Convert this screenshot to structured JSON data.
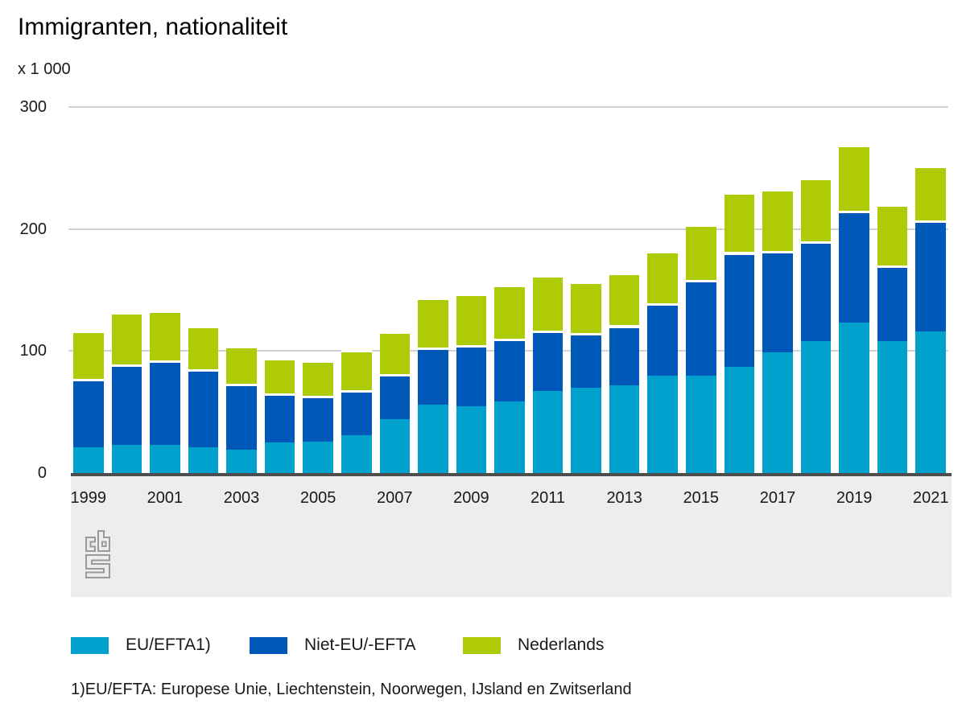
{
  "title": "Immigranten, nationaliteit",
  "unit_label": "x 1 000",
  "footnote": "1)EU/EFTA: Europese Unie, Liechtenstein, Noorwegen, IJsland en Zwitserland",
  "logo_name": "cbs-logo",
  "colors": {
    "eu_efta": "#00a1cd",
    "niet_eu_efta": "#0058b8",
    "nederlands": "#afcb05",
    "axis_line": "#4d4d4d",
    "gridline": "#d2d2d2",
    "panel_background": "#ededed",
    "logo_grey": "#9a9a9a"
  },
  "chart_data": {
    "type": "bar",
    "stacked": true,
    "title": "Immigranten, nationaliteit",
    "unit": "x 1 000",
    "xlabel": "",
    "ylabel": "x 1 000",
    "ylim": [
      0,
      300
    ],
    "yticks": [
      0,
      100,
      200,
      300
    ],
    "grid": true,
    "legend_position": "bottom",
    "categories": [
      1999,
      2000,
      2001,
      2002,
      2003,
      2004,
      2005,
      2006,
      2007,
      2008,
      2009,
      2010,
      2011,
      2012,
      2013,
      2014,
      2015,
      2016,
      2017,
      2018,
      2019,
      2020,
      2021
    ],
    "x_tick_labels": [
      "1999",
      "2001",
      "2003",
      "2005",
      "2007",
      "2009",
      "2011",
      "2013",
      "2015",
      "2017",
      "2019",
      "2021"
    ],
    "series": [
      {
        "name": "EU/EFTA1)",
        "slug": "eu-efta",
        "color": "#00a1cd",
        "values": [
          21,
          23,
          23,
          21,
          19,
          25,
          26,
          31,
          44,
          56,
          55,
          59,
          67,
          70,
          72,
          80,
          80,
          87,
          99,
          108,
          123,
          108,
          116
        ]
      },
      {
        "name": "Niet-EU/-EFTA",
        "slug": "niet-eu-efta",
        "color": "#0058b8",
        "values": [
          56,
          66,
          69,
          64,
          54,
          40,
          37,
          37,
          37,
          47,
          50,
          51,
          50,
          45,
          49,
          59,
          78,
          94,
          83,
          82,
          92,
          62,
          91
        ]
      },
      {
        "name": "Nederlands",
        "slug": "nederlands",
        "color": "#afcb05",
        "values": [
          40,
          43,
          41,
          36,
          31,
          29,
          29,
          33,
          35,
          41,
          42,
          44,
          45,
          42,
          43,
          43,
          46,
          49,
          51,
          52,
          54,
          50,
          45
        ]
      }
    ]
  },
  "legend_x_positions": [
    88,
    310,
    575
  ]
}
